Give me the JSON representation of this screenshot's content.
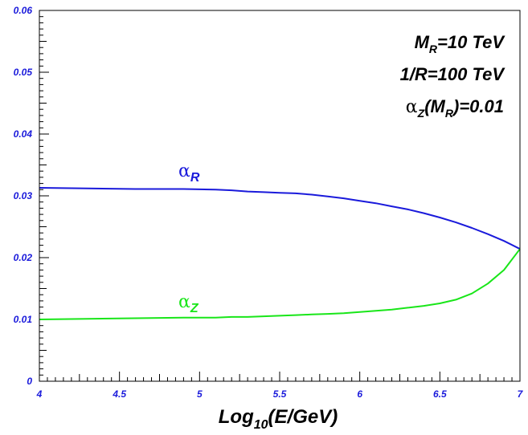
{
  "chart_data": {
    "type": "line",
    "xlabel": {
      "base": "Log",
      "sub": "10",
      "rest": "(E/GeV)"
    },
    "ylabel": "",
    "xlim": [
      4,
      7
    ],
    "ylim": [
      0,
      0.06
    ],
    "xticks": [
      "4",
      "4.5",
      "5",
      "5.5",
      "6",
      "6.5",
      "7"
    ],
    "yticks": [
      "0",
      "0.01",
      "0.02",
      "0.03",
      "0.04",
      "0.05",
      "0.06"
    ],
    "annotations": [
      {
        "id": "mr",
        "main": "M",
        "sub": "R",
        "rest": "=10 TeV"
      },
      {
        "id": "inv",
        "main": "1/R=100 TeV"
      },
      {
        "id": "alphaz",
        "greek": "α",
        "sub1": "Z",
        "mid": "(M",
        "sub2": "R",
        "rest": ")=0.01"
      }
    ],
    "series": [
      {
        "greek": "α",
        "sub": "R",
        "color": "#1a1adb",
        "x": [
          4.0,
          4.3,
          4.6,
          4.9,
          5.1,
          5.2,
          5.3,
          5.4,
          5.5,
          5.6,
          5.7,
          5.8,
          5.9,
          6.0,
          6.1,
          6.2,
          6.3,
          6.4,
          6.5,
          6.6,
          6.7,
          6.8,
          6.9,
          7.0
        ],
        "values": [
          0.0313,
          0.0312,
          0.0311,
          0.0311,
          0.031,
          0.0309,
          0.0307,
          0.0306,
          0.0305,
          0.0304,
          0.0302,
          0.0299,
          0.0296,
          0.0292,
          0.0288,
          0.0283,
          0.0278,
          0.0272,
          0.0265,
          0.0257,
          0.0248,
          0.0238,
          0.0227,
          0.0214
        ]
      },
      {
        "greek": "α",
        "sub": "Z",
        "color": "#19e619",
        "x": [
          4.0,
          4.3,
          4.6,
          4.9,
          5.1,
          5.2,
          5.3,
          5.4,
          5.5,
          5.6,
          5.7,
          5.8,
          5.9,
          6.0,
          6.1,
          6.2,
          6.3,
          6.4,
          6.5,
          6.6,
          6.7,
          6.8,
          6.9,
          7.0
        ],
        "values": [
          0.01,
          0.0101,
          0.0102,
          0.0103,
          0.0103,
          0.0104,
          0.0104,
          0.0105,
          0.0106,
          0.0107,
          0.0108,
          0.0109,
          0.011,
          0.0112,
          0.0114,
          0.0116,
          0.0119,
          0.0122,
          0.0126,
          0.0132,
          0.0142,
          0.0158,
          0.018,
          0.0214
        ]
      }
    ]
  }
}
